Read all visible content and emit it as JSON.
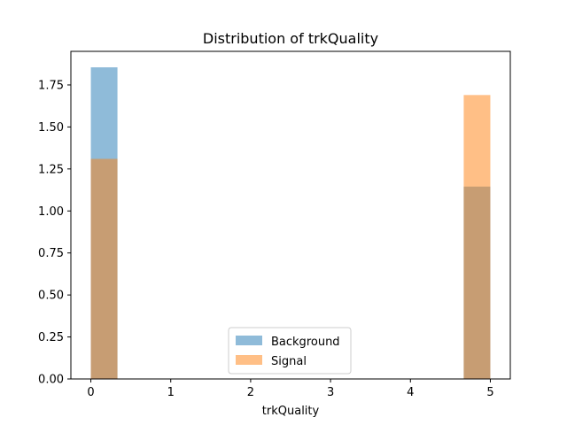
{
  "chart_data": {
    "type": "bar",
    "subtype": "overlaid-histogram",
    "title": "Distribution of trkQuality",
    "xlabel": "trkQuality",
    "ylabel": "",
    "xlim": [
      -0.25,
      5.25
    ],
    "ylim": [
      0,
      1.95
    ],
    "xticks": [
      0,
      1,
      2,
      3,
      4,
      5
    ],
    "yticks": [
      0.0,
      0.25,
      0.5,
      0.75,
      1.0,
      1.25,
      1.5,
      1.75
    ],
    "ytick_labels": [
      "0.00",
      "0.25",
      "0.50",
      "0.75",
      "1.00",
      "1.25",
      "1.50",
      "1.75"
    ],
    "bin_width": 0.333,
    "grid": false,
    "legend_position": "lower-center",
    "series": [
      {
        "name": "Background",
        "color": "#1f77b4",
        "opacity": 0.5,
        "bins": [
          {
            "x0": 0.0,
            "x1": 0.333,
            "value": 1.855
          },
          {
            "x0": 4.667,
            "x1": 5.0,
            "value": 1.145
          }
        ]
      },
      {
        "name": "Signal",
        "color": "#ff7f0e",
        "opacity": 0.5,
        "bins": [
          {
            "x0": 0.0,
            "x1": 0.333,
            "value": 1.31
          },
          {
            "x0": 4.667,
            "x1": 5.0,
            "value": 1.69
          }
        ]
      }
    ]
  }
}
